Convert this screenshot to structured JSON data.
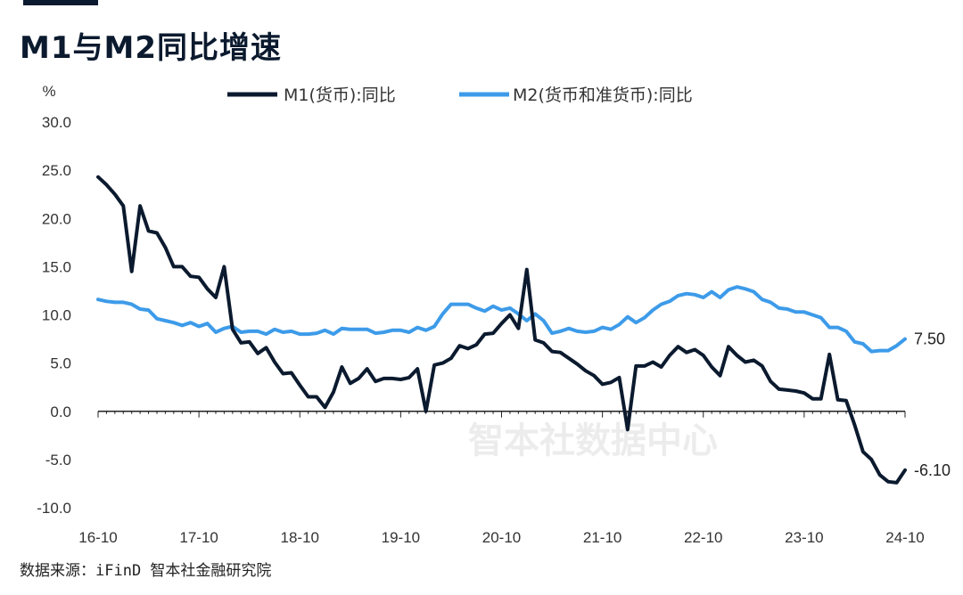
{
  "page": {
    "title": "M1与M2同比增速",
    "source": "数据来源：iFinD 智本社金融研究院",
    "watermark": "智本社数据中心"
  },
  "colors": {
    "m1": "#0b1a2e",
    "m2": "#3d9be9"
  },
  "chart_data": {
    "type": "line",
    "y_unit": "%",
    "ylim": [
      -10,
      30
    ],
    "y_ticks": [
      "30.0",
      "25.0",
      "20.0",
      "15.0",
      "10.0",
      "5.0",
      "0.0",
      "-5.0",
      "-10.0"
    ],
    "x_range": [
      "2016-10",
      "2024-10"
    ],
    "x_ticks": [
      "16-10",
      "17-10",
      "18-10",
      "19-10",
      "20-10",
      "21-10",
      "22-10",
      "23-10",
      "24-10"
    ],
    "grid": false,
    "legend": "top",
    "series": [
      {
        "name": "M1(货币):同比",
        "end_label": "-6.10",
        "values": [
          [
            "2016-10",
            24.3
          ],
          [
            "2016-11",
            23.5
          ],
          [
            "2016-12",
            22.5
          ],
          [
            "2017-01",
            21.3
          ],
          [
            "2017-02",
            14.5
          ],
          [
            "2017-03",
            21.3
          ],
          [
            "2017-04",
            18.7
          ],
          [
            "2017-05",
            18.5
          ],
          [
            "2017-06",
            17.0
          ],
          [
            "2017-07",
            15.0
          ],
          [
            "2017-08",
            15.0
          ],
          [
            "2017-09",
            14.0
          ],
          [
            "2017-10",
            13.9
          ],
          [
            "2017-11",
            12.7
          ],
          [
            "2017-12",
            11.8
          ],
          [
            "2018-01",
            15.0
          ],
          [
            "2018-02",
            8.5
          ],
          [
            "2018-03",
            7.1
          ],
          [
            "2018-04",
            7.2
          ],
          [
            "2018-05",
            6.0
          ],
          [
            "2018-06",
            6.6
          ],
          [
            "2018-07",
            5.1
          ],
          [
            "2018-08",
            3.9
          ],
          [
            "2018-09",
            4.0
          ],
          [
            "2018-10",
            2.7
          ],
          [
            "2018-11",
            1.5
          ],
          [
            "2018-12",
            1.5
          ],
          [
            "2019-01",
            0.4
          ],
          [
            "2019-02",
            2.0
          ],
          [
            "2019-03",
            4.6
          ],
          [
            "2019-04",
            2.9
          ],
          [
            "2019-05",
            3.4
          ],
          [
            "2019-06",
            4.4
          ],
          [
            "2019-07",
            3.1
          ],
          [
            "2019-08",
            3.4
          ],
          [
            "2019-09",
            3.4
          ],
          [
            "2019-10",
            3.3
          ],
          [
            "2019-11",
            3.5
          ],
          [
            "2019-12",
            4.4
          ],
          [
            "2020-01",
            0.0
          ],
          [
            "2020-02",
            4.8
          ],
          [
            "2020-03",
            5.0
          ],
          [
            "2020-04",
            5.5
          ],
          [
            "2020-05",
            6.8
          ],
          [
            "2020-06",
            6.5
          ],
          [
            "2020-07",
            6.9
          ],
          [
            "2020-08",
            8.0
          ],
          [
            "2020-09",
            8.1
          ],
          [
            "2020-10",
            9.1
          ],
          [
            "2020-11",
            10.0
          ],
          [
            "2020-12",
            8.6
          ],
          [
            "2021-01",
            14.7
          ],
          [
            "2021-02",
            7.4
          ],
          [
            "2021-03",
            7.1
          ],
          [
            "2021-04",
            6.2
          ],
          [
            "2021-05",
            6.1
          ],
          [
            "2021-06",
            5.5
          ],
          [
            "2021-07",
            4.9
          ],
          [
            "2021-08",
            4.2
          ],
          [
            "2021-09",
            3.7
          ],
          [
            "2021-10",
            2.8
          ],
          [
            "2021-11",
            3.0
          ],
          [
            "2021-12",
            3.5
          ],
          [
            "2022-01",
            -1.9
          ],
          [
            "2022-02",
            4.7
          ],
          [
            "2022-03",
            4.7
          ],
          [
            "2022-04",
            5.1
          ],
          [
            "2022-05",
            4.6
          ],
          [
            "2022-06",
            5.8
          ],
          [
            "2022-07",
            6.7
          ],
          [
            "2022-08",
            6.1
          ],
          [
            "2022-09",
            6.4
          ],
          [
            "2022-10",
            5.8
          ],
          [
            "2022-11",
            4.6
          ],
          [
            "2022-12",
            3.7
          ],
          [
            "2023-01",
            6.7
          ],
          [
            "2023-02",
            5.8
          ],
          [
            "2023-03",
            5.1
          ],
          [
            "2023-04",
            5.3
          ],
          [
            "2023-05",
            4.7
          ],
          [
            "2023-06",
            3.1
          ],
          [
            "2023-07",
            2.3
          ],
          [
            "2023-08",
            2.2
          ],
          [
            "2023-09",
            2.1
          ],
          [
            "2023-10",
            1.9
          ],
          [
            "2023-11",
            1.3
          ],
          [
            "2023-12",
            1.3
          ],
          [
            "2024-01",
            5.9
          ],
          [
            "2024-02",
            1.2
          ],
          [
            "2024-03",
            1.1
          ],
          [
            "2024-04",
            -1.4
          ],
          [
            "2024-05",
            -4.2
          ],
          [
            "2024-06",
            -5.0
          ],
          [
            "2024-07",
            -6.6
          ],
          [
            "2024-08",
            -7.3
          ],
          [
            "2024-09",
            -7.4
          ],
          [
            "2024-10",
            -6.1
          ]
        ]
      },
      {
        "name": "M2(货币和准货币):同比",
        "end_label": "7.50",
        "values": [
          [
            "2016-10",
            11.6
          ],
          [
            "2016-11",
            11.4
          ],
          [
            "2016-12",
            11.3
          ],
          [
            "2017-01",
            11.3
          ],
          [
            "2017-02",
            11.1
          ],
          [
            "2017-03",
            10.6
          ],
          [
            "2017-04",
            10.5
          ],
          [
            "2017-05",
            9.6
          ],
          [
            "2017-06",
            9.4
          ],
          [
            "2017-07",
            9.2
          ],
          [
            "2017-08",
            8.9
          ],
          [
            "2017-09",
            9.2
          ],
          [
            "2017-10",
            8.8
          ],
          [
            "2017-11",
            9.1
          ],
          [
            "2017-12",
            8.2
          ],
          [
            "2018-01",
            8.6
          ],
          [
            "2018-02",
            8.8
          ],
          [
            "2018-03",
            8.2
          ],
          [
            "2018-04",
            8.3
          ],
          [
            "2018-05",
            8.3
          ],
          [
            "2018-06",
            8.0
          ],
          [
            "2018-07",
            8.5
          ],
          [
            "2018-08",
            8.2
          ],
          [
            "2018-09",
            8.3
          ],
          [
            "2018-10",
            8.0
          ],
          [
            "2018-11",
            8.0
          ],
          [
            "2018-12",
            8.1
          ],
          [
            "2019-01",
            8.4
          ],
          [
            "2019-02",
            8.0
          ],
          [
            "2019-03",
            8.6
          ],
          [
            "2019-04",
            8.5
          ],
          [
            "2019-05",
            8.5
          ],
          [
            "2019-06",
            8.5
          ],
          [
            "2019-07",
            8.1
          ],
          [
            "2019-08",
            8.2
          ],
          [
            "2019-09",
            8.4
          ],
          [
            "2019-10",
            8.4
          ],
          [
            "2019-11",
            8.2
          ],
          [
            "2019-12",
            8.7
          ],
          [
            "2020-01",
            8.4
          ],
          [
            "2020-02",
            8.8
          ],
          [
            "2020-03",
            10.1
          ],
          [
            "2020-04",
            11.1
          ],
          [
            "2020-05",
            11.1
          ],
          [
            "2020-06",
            11.1
          ],
          [
            "2020-07",
            10.7
          ],
          [
            "2020-08",
            10.4
          ],
          [
            "2020-09",
            10.9
          ],
          [
            "2020-10",
            10.5
          ],
          [
            "2020-11",
            10.7
          ],
          [
            "2020-12",
            10.1
          ],
          [
            "2021-01",
            9.4
          ],
          [
            "2021-02",
            10.1
          ],
          [
            "2021-03",
            9.4
          ],
          [
            "2021-04",
            8.1
          ],
          [
            "2021-05",
            8.3
          ],
          [
            "2021-06",
            8.6
          ],
          [
            "2021-07",
            8.3
          ],
          [
            "2021-08",
            8.2
          ],
          [
            "2021-09",
            8.3
          ],
          [
            "2021-10",
            8.7
          ],
          [
            "2021-11",
            8.5
          ],
          [
            "2021-12",
            9.0
          ],
          [
            "2022-01",
            9.8
          ],
          [
            "2022-02",
            9.2
          ],
          [
            "2022-03",
            9.7
          ],
          [
            "2022-04",
            10.5
          ],
          [
            "2022-05",
            11.1
          ],
          [
            "2022-06",
            11.4
          ],
          [
            "2022-07",
            12.0
          ],
          [
            "2022-08",
            12.2
          ],
          [
            "2022-09",
            12.1
          ],
          [
            "2022-10",
            11.8
          ],
          [
            "2022-11",
            12.4
          ],
          [
            "2022-12",
            11.8
          ],
          [
            "2023-01",
            12.6
          ],
          [
            "2023-02",
            12.9
          ],
          [
            "2023-03",
            12.7
          ],
          [
            "2023-04",
            12.4
          ],
          [
            "2023-05",
            11.6
          ],
          [
            "2023-06",
            11.3
          ],
          [
            "2023-07",
            10.7
          ],
          [
            "2023-08",
            10.6
          ],
          [
            "2023-09",
            10.3
          ],
          [
            "2023-10",
            10.3
          ],
          [
            "2023-11",
            10.0
          ],
          [
            "2023-12",
            9.7
          ],
          [
            "2024-01",
            8.7
          ],
          [
            "2024-02",
            8.7
          ],
          [
            "2024-03",
            8.3
          ],
          [
            "2024-04",
            7.2
          ],
          [
            "2024-05",
            7.0
          ],
          [
            "2024-06",
            6.2
          ],
          [
            "2024-07",
            6.3
          ],
          [
            "2024-08",
            6.3
          ],
          [
            "2024-09",
            6.8
          ],
          [
            "2024-10",
            7.5
          ]
        ]
      }
    ]
  }
}
